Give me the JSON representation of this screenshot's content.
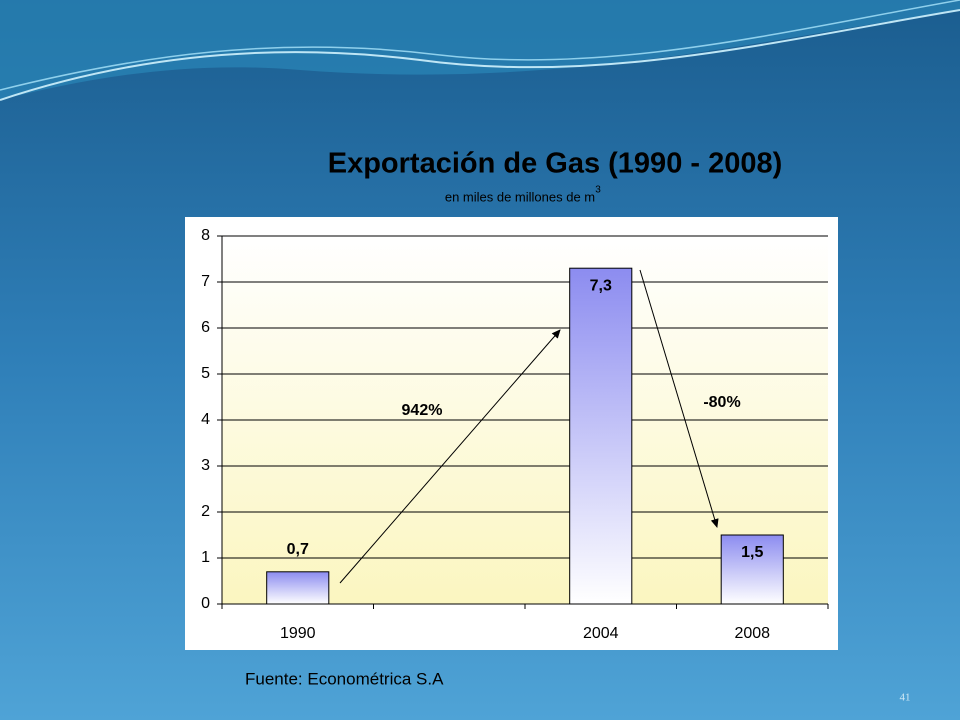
{
  "chart_data": {
    "type": "bar",
    "title": "Exportación de Gas (1990 - 2008)",
    "subtitle": "en miles de millones de m",
    "subtitle_superscript": "3",
    "categories": [
      "1990",
      null,
      "2004",
      "2008"
    ],
    "values": [
      0.7,
      null,
      7.3,
      1.5
    ],
    "value_labels": [
      "0,7",
      null,
      "7,3",
      "1,5"
    ],
    "color": "#8c8cf0",
    "ylim": [
      0,
      8
    ],
    "yticks": [
      0,
      1,
      2,
      3,
      4,
      5,
      6,
      7,
      8
    ],
    "grid": true,
    "annotations": [
      "942%",
      "-80%"
    ]
  },
  "source": "Fuente: Econométrica S.A",
  "page_number": "41"
}
